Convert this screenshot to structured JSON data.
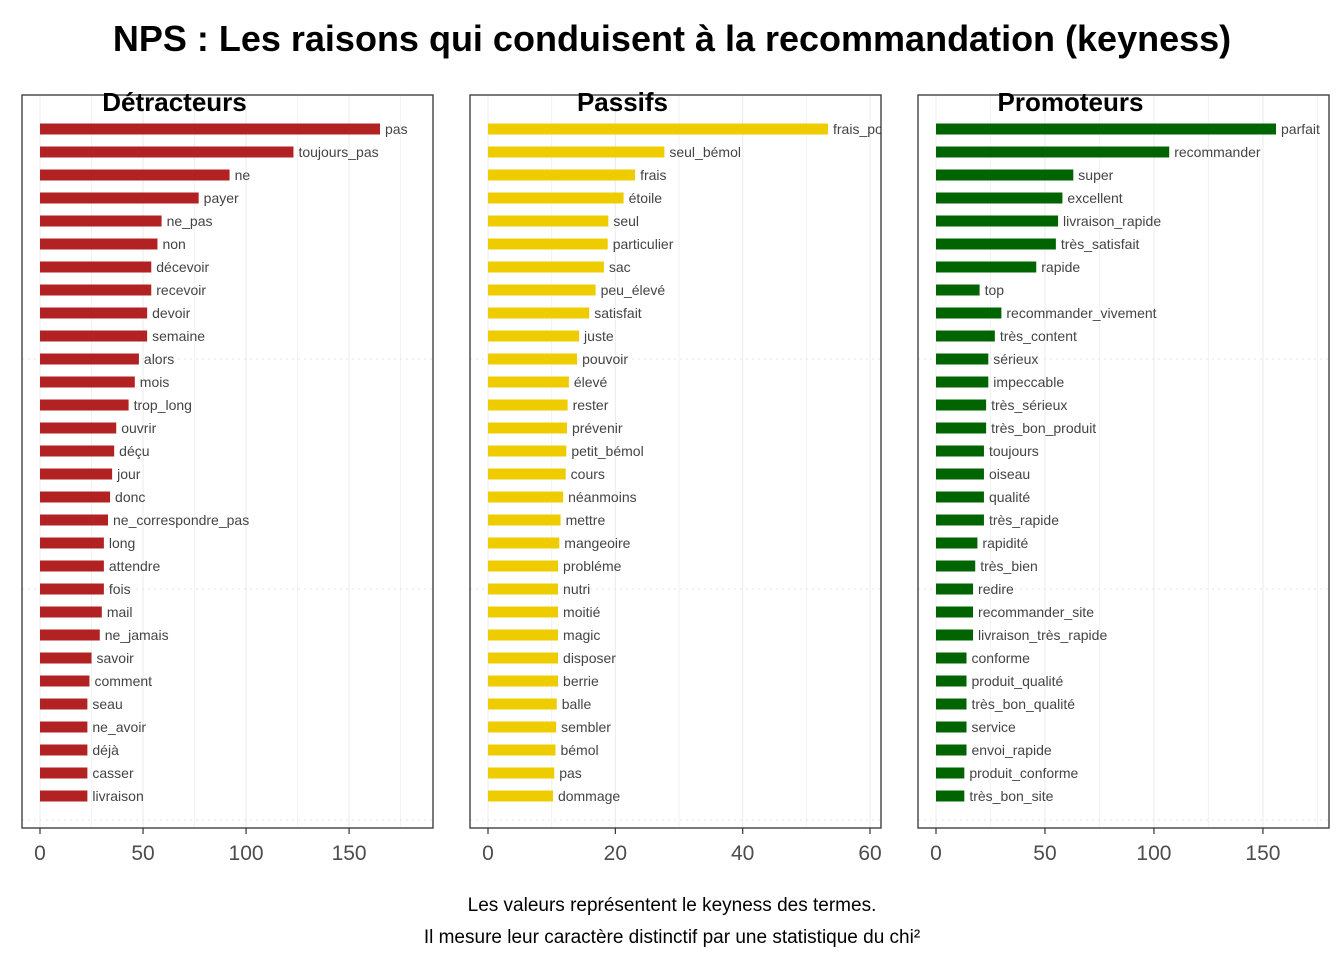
{
  "title": "NPS : Les raisons qui conduisent à la recommandation (keyness)",
  "caption": [
    "Les valeurs représentent le keyness des termes.",
    "Il mesure leur caractère distinctif par une statistique du chi²"
  ],
  "chart_data": [
    {
      "type": "bar",
      "orientation": "horizontal",
      "title": "Détracteurs",
      "color": "#B22222",
      "xlim": [
        0,
        185
      ],
      "xticks": [
        0,
        50,
        100,
        150
      ],
      "grid": true,
      "categories": [
        "pas",
        "toujours_pas",
        "ne",
        "payer",
        "ne_pas",
        "non",
        "décevoir",
        "recevoir",
        "devoir",
        "semaine",
        "alors",
        "mois",
        "trop_long",
        "ouvrir",
        "déçu",
        "jour",
        "donc",
        "ne_correspondre_pas",
        "long",
        "attendre",
        "fois",
        "mail",
        "ne_jamais",
        "savoir",
        "comment",
        "seau",
        "ne_avoir",
        "déjà",
        "casser",
        "livraison"
      ],
      "values": [
        165,
        123,
        92,
        77,
        59,
        57,
        54,
        54,
        52,
        52,
        48,
        46,
        43,
        37,
        36,
        35,
        34,
        33,
        31,
        31,
        31,
        30,
        29,
        25,
        24,
        23,
        23,
        23,
        23,
        23
      ]
    },
    {
      "type": "bar",
      "orientation": "horizontal",
      "title": "Passifs",
      "color": "#EECC00",
      "xlim": [
        0,
        61.5
      ],
      "xticks": [
        0,
        20,
        40,
        60
      ],
      "grid": true,
      "categories": [
        "frais_port",
        "seul_bémol",
        "frais",
        "étoile",
        "seul",
        "particulier",
        "sac",
        "peu_élevé",
        "satisfait",
        "juste",
        "pouvoir",
        "élevé",
        "rester",
        "prévenir",
        "petit_bémol",
        "cours",
        "néanmoins",
        "mettre",
        "mangeoire",
        "probléme",
        "nutri",
        "moitié",
        "magic",
        "disposer",
        "berrie",
        "balle",
        "sembler",
        "bémol",
        "pas",
        "dommage"
      ],
      "values": [
        53.4,
        27.7,
        23.1,
        21.3,
        18.9,
        18.8,
        18.2,
        16.9,
        15.9,
        14.3,
        14.0,
        12.7,
        12.5,
        12.4,
        12.3,
        12.2,
        11.8,
        11.4,
        11.2,
        11.0,
        11.0,
        11.0,
        11.0,
        11.0,
        11.0,
        10.8,
        10.7,
        10.6,
        10.4,
        10.2
      ]
    },
    {
      "type": "bar",
      "orientation": "horizontal",
      "title": "Promoteurs",
      "color": "#006400",
      "xlim": [
        0,
        179
      ],
      "xticks": [
        0,
        50,
        100,
        150
      ],
      "grid": true,
      "categories": [
        "parfait",
        "recommander",
        "super",
        "excellent",
        "livraison_rapide",
        "très_satisfait",
        "rapide",
        "top",
        "recommander_vivement",
        "très_content",
        "sérieux",
        "impeccable",
        "très_sérieux",
        "très_bon_produit",
        "toujours",
        "oiseau",
        "qualité",
        "très_rapide",
        "rapidité",
        "très_bien",
        "redire",
        "recommander_site",
        "livraison_très_rapide",
        "conforme",
        "produit_qualité",
        "très_bon_qualité",
        "service",
        "envoi_rapide",
        "produit_conforme",
        "très_bon_site"
      ],
      "values": [
        156,
        107,
        63,
        58,
        56,
        55,
        46,
        20,
        30,
        27,
        24,
        24,
        23,
        23,
        22,
        22,
        22,
        22,
        19,
        18,
        17,
        17,
        17,
        14,
        14,
        14,
        14,
        14,
        13,
        13
      ]
    }
  ]
}
